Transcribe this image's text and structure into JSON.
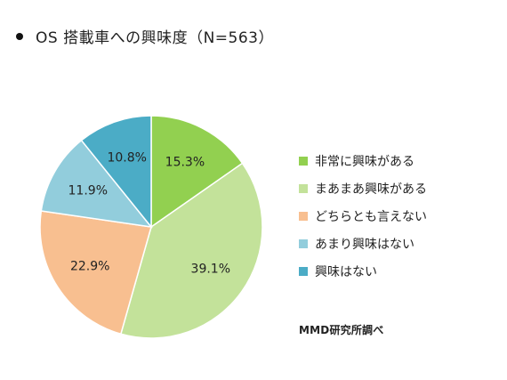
{
  "chart_data": {
    "type": "pie",
    "title": "OS 搭載車への興味度（N=563）",
    "categories": [
      "非常に興味がある",
      "まあまあ興味がある",
      "どちらとも言えない",
      "あまり興味はない",
      "興味はない"
    ],
    "values": [
      15.3,
      39.1,
      22.9,
      11.9,
      10.8
    ],
    "labels": [
      "15.3%",
      "39.1%",
      "22.9%",
      "11.9%",
      "10.8%"
    ],
    "colors": [
      "#92d050",
      "#c3e29a",
      "#f8bf90",
      "#92cddc",
      "#4bacc6"
    ],
    "legend_position": "right",
    "start_angle_deg": 0,
    "direction": "clockwise"
  },
  "source": "MMD研究所調べ"
}
